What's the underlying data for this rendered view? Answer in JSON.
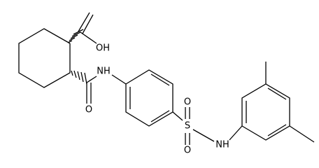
{
  "atoms": [
    "OH",
    "O",
    "NH",
    "O",
    "S",
    "O",
    "NH"
  ]
}
